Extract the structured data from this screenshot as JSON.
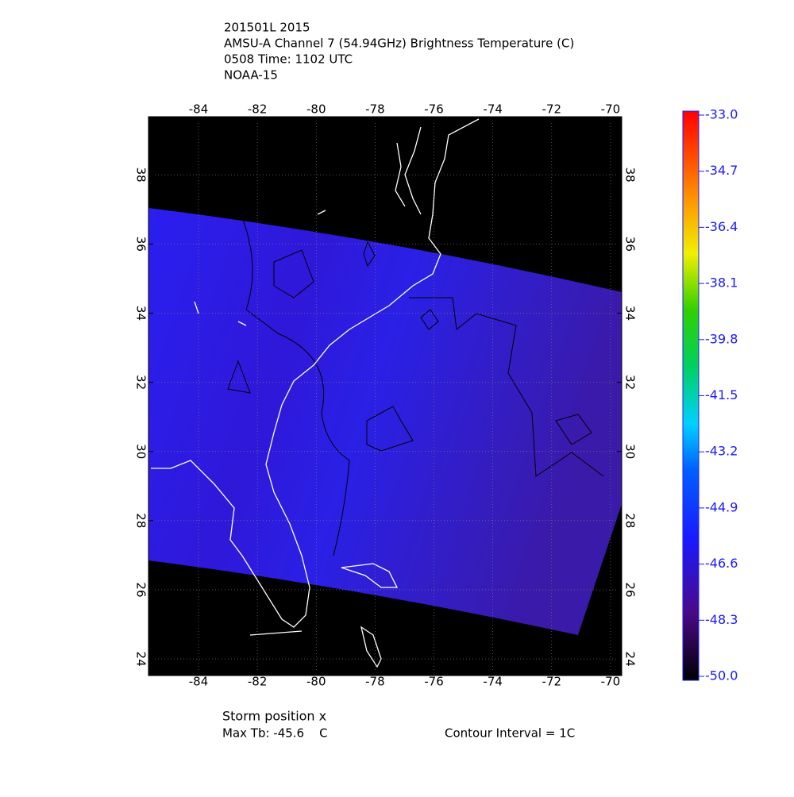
{
  "header": {
    "lines": [
      "201501L 2015",
      "AMSU-A Channel 7 (54.94GHz) Brightness Temperature (C)",
      "0508 Time: 1102 UTC",
      "NOAA-15"
    ]
  },
  "map": {
    "xlim": [
      -85.7,
      -69.62
    ],
    "ylim": [
      23.52,
      39.68
    ],
    "xticks": [
      -84,
      -82,
      -80,
      -78,
      -76,
      -74,
      -72,
      -70
    ],
    "yticks": [
      24,
      26,
      28,
      30,
      32,
      34,
      36,
      38
    ]
  },
  "colorbar": {
    "lim": [
      -50,
      -33
    ],
    "ticks": [
      {
        "value": -33,
        "label": "-33.0"
      },
      {
        "value": -34.7,
        "label": "-34.7"
      },
      {
        "value": -36.4,
        "label": "-36.4"
      },
      {
        "value": -38.1,
        "label": "-38.1"
      },
      {
        "value": -39.8,
        "label": "-39.8"
      },
      {
        "value": -41.5,
        "label": "-41.5"
      },
      {
        "value": -43.2,
        "label": "-43.2"
      },
      {
        "value": -44.9,
        "label": "-44.9"
      },
      {
        "value": -46.6,
        "label": "-46.6"
      },
      {
        "value": -48.3,
        "label": "-48.3"
      },
      {
        "value": -50,
        "label": "-50.0"
      }
    ]
  },
  "footer": {
    "storm": "Storm position x",
    "max_tb": "Max Tb: -45.6    C",
    "contour": "Contour Interval = 1C"
  }
}
